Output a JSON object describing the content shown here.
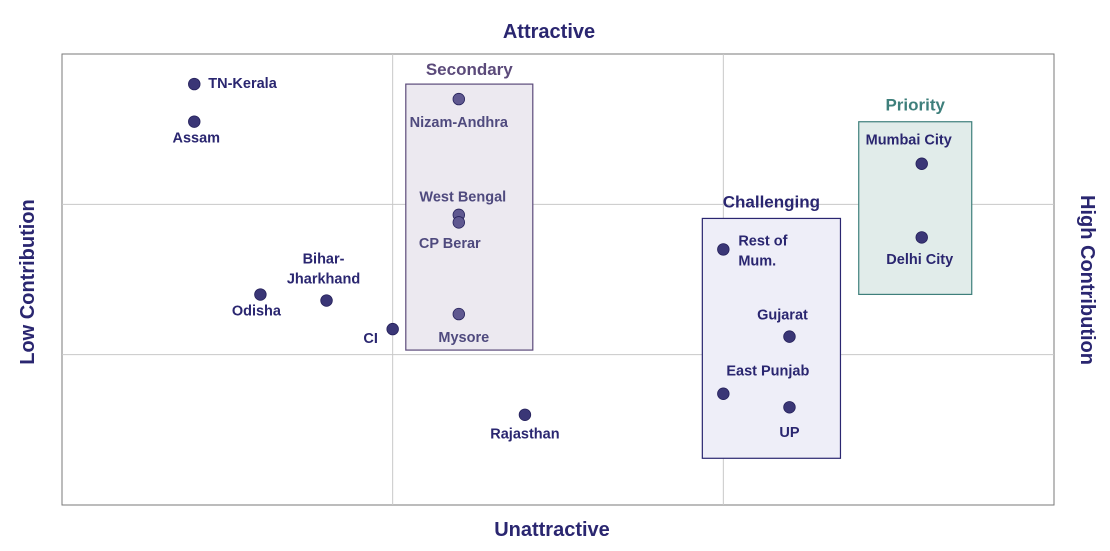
{
  "chart_data": {
    "type": "scatter",
    "title": "",
    "axis_labels": {
      "top": "Attractive",
      "bottom": "Unattractive",
      "left": "Low Contribution",
      "right": "High Contribution"
    },
    "xlim": [
      0,
      3
    ],
    "ylim": [
      0,
      3
    ],
    "grid": true,
    "point_color": "#3a3676",
    "points": [
      {
        "label": "TN-Kerala",
        "x": 0.4,
        "y": 2.8
      },
      {
        "label": "Assam",
        "x": 0.4,
        "y": 2.55
      },
      {
        "label": "Nizam-Andhra",
        "x": 1.2,
        "y": 2.7
      },
      {
        "label": "West Bengal",
        "x": 1.2,
        "y": 1.93
      },
      {
        "label": "CP Berar",
        "x": 1.2,
        "y": 1.88
      },
      {
        "label": "Mysore",
        "x": 1.2,
        "y": 1.27
      },
      {
        "label": "Bihar-Jharkhand",
        "x": 0.8,
        "y": 1.36
      },
      {
        "label": "Odisha",
        "x": 0.6,
        "y": 1.4
      },
      {
        "label": "CI",
        "x": 1.0,
        "y": 1.17
      },
      {
        "label": "Rajasthan",
        "x": 1.4,
        "y": 0.6
      },
      {
        "label": "Rest of Mum.",
        "x": 2.0,
        "y": 1.7
      },
      {
        "label": "Gujarat",
        "x": 2.2,
        "y": 1.12
      },
      {
        "label": "East Punjab",
        "x": 2.0,
        "y": 0.74
      },
      {
        "label": "UP",
        "x": 2.2,
        "y": 0.65
      },
      {
        "label": "Mumbai City",
        "x": 2.6,
        "y": 2.27
      },
      {
        "label": "Delhi City",
        "x": 2.6,
        "y": 1.78
      }
    ],
    "groups": [
      {
        "name": "Secondary",
        "members": [
          "Nizam-Andhra",
          "West Bengal",
          "CP Berar",
          "Mysore"
        ],
        "color": "#5b4a7a",
        "fill": "#ece9f0"
      },
      {
        "name": "Challenging",
        "members": [
          "Rest of Mum.",
          "Gujarat",
          "East Punjab",
          "UP"
        ],
        "color": "#2a2670",
        "fill": "#eeeef8"
      },
      {
        "name": "Priority",
        "members": [
          "Mumbai City",
          "Delhi City"
        ],
        "color": "#3e7f7b",
        "fill": "#e1ecea"
      }
    ]
  }
}
